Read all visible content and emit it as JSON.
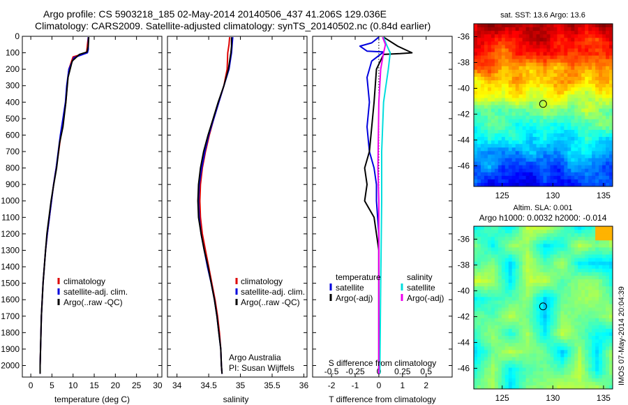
{
  "header": {
    "line1": "Argo profile: CS 5903218_185 02-May-2014 20140506_437 41.206S 129.036E",
    "line2": "Climatology: CARS2009. Satellite-adjusted climatology: synTS_20140502.nc (0.84d earlier)"
  },
  "footer_note": "IMOS 07-May-2014 20:04:39",
  "chart_data": [
    {
      "type": "line",
      "xlabel": "temperature (deg C)",
      "ylabel": "",
      "xticks": [
        "0",
        "5",
        "10",
        "15",
        "20",
        "25",
        "30"
      ],
      "yticks": [
        "0",
        "100",
        "200",
        "300",
        "400",
        "500",
        "600",
        "700",
        "800",
        "900",
        "1000",
        "1100",
        "1200",
        "1300",
        "1400",
        "1500",
        "1600",
        "1700",
        "1800",
        "1900",
        "2000"
      ],
      "xlim": [
        -2,
        31
      ],
      "ylim": [
        2070,
        0
      ],
      "legend": [
        "climatology",
        "satellite-adj. clim.",
        "Argo(..raw -QC)"
      ],
      "colors": [
        "#dd0000",
        "#0000dd",
        "#000000"
      ],
      "series": [
        {
          "name": "climatology",
          "color": "#dd0000",
          "points": [
            [
              13.6,
              5
            ],
            [
              13.4,
              50
            ],
            [
              13.2,
              100
            ],
            [
              10.0,
              125
            ],
            [
              9.0,
              200
            ],
            [
              8.6,
              300
            ],
            [
              8.3,
              400
            ],
            [
              7.7,
              500
            ],
            [
              7.1,
              600
            ],
            [
              6.6,
              700
            ],
            [
              6.0,
              800
            ],
            [
              5.4,
              900
            ],
            [
              4.9,
              1000
            ],
            [
              4.4,
              1100
            ],
            [
              3.9,
              1200
            ],
            [
              3.5,
              1300
            ],
            [
              3.2,
              1400
            ],
            [
              2.9,
              1500
            ],
            [
              2.7,
              1600
            ],
            [
              2.5,
              1700
            ],
            [
              2.4,
              1800
            ],
            [
              2.3,
              1900
            ],
            [
              2.2,
              2000
            ],
            [
              2.2,
              2050
            ]
          ]
        },
        {
          "name": "satellite-adj. clim.",
          "color": "#0000dd",
          "points": [
            [
              13.6,
              5
            ],
            [
              13.6,
              80
            ],
            [
              13.4,
              100
            ],
            [
              10.2,
              130
            ],
            [
              9.0,
              200
            ],
            [
              8.5,
              300
            ],
            [
              8.2,
              400
            ],
            [
              7.6,
              500
            ],
            [
              7.0,
              600
            ],
            [
              6.5,
              700
            ],
            [
              6.0,
              800
            ],
            [
              5.4,
              900
            ],
            [
              4.9,
              1000
            ],
            [
              4.4,
              1100
            ],
            [
              3.9,
              1200
            ],
            [
              3.5,
              1300
            ],
            [
              3.2,
              1400
            ],
            [
              2.9,
              1500
            ],
            [
              2.7,
              1600
            ],
            [
              2.5,
              1700
            ],
            [
              2.4,
              1800
            ],
            [
              2.3,
              1900
            ],
            [
              2.2,
              2000
            ],
            [
              2.2,
              2050
            ]
          ]
        },
        {
          "name": "Argo(..raw -QC)",
          "color": "#000000",
          "points": [
            [
              13.7,
              5
            ],
            [
              13.6,
              60
            ],
            [
              13.3,
              95
            ],
            [
              11.5,
              110
            ],
            [
              9.8,
              150
            ],
            [
              8.8,
              250
            ],
            [
              8.3,
              400
            ],
            [
              7.6,
              550
            ],
            [
              6.8,
              650
            ],
            [
              6.1,
              800
            ],
            [
              5.3,
              920
            ],
            [
              4.8,
              1000
            ],
            [
              4.3,
              1100
            ],
            [
              3.8,
              1200
            ],
            [
              3.5,
              1300
            ],
            [
              3.2,
              1400
            ],
            [
              2.9,
              1500
            ],
            [
              2.7,
              1600
            ],
            [
              2.5,
              1700
            ],
            [
              2.4,
              1800
            ],
            [
              2.3,
              1900
            ],
            [
              2.2,
              2000
            ],
            [
              2.2,
              2050
            ]
          ]
        }
      ]
    },
    {
      "type": "line",
      "xlabel": "salinity",
      "xticks": [
        "34",
        "34.5",
        "35",
        "35.5",
        "36"
      ],
      "xlim": [
        33.85,
        36.05
      ],
      "ylim": [
        2070,
        0
      ],
      "legend": [
        "climatology",
        "satellite-adj. clim.",
        "Argo(..raw -QC)"
      ],
      "annotation1": "Argo Australia",
      "annotation2": "PI: Susan Wijffels",
      "series": [
        {
          "name": "climatology",
          "color": "#dd0000",
          "points": [
            [
              34.83,
              5
            ],
            [
              34.82,
              50
            ],
            [
              34.8,
              100
            ],
            [
              34.79,
              200
            ],
            [
              34.74,
              300
            ],
            [
              34.66,
              400
            ],
            [
              34.58,
              500
            ],
            [
              34.51,
              600
            ],
            [
              34.45,
              700
            ],
            [
              34.4,
              800
            ],
            [
              34.37,
              900
            ],
            [
              34.36,
              1000
            ],
            [
              34.37,
              1100
            ],
            [
              34.4,
              1200
            ],
            [
              34.45,
              1300
            ],
            [
              34.5,
              1400
            ],
            [
              34.55,
              1500
            ],
            [
              34.6,
              1600
            ],
            [
              34.64,
              1700
            ],
            [
              34.67,
              1800
            ],
            [
              34.69,
              1900
            ],
            [
              34.7,
              2000
            ],
            [
              34.71,
              2050
            ]
          ]
        },
        {
          "name": "satellite-adj. clim.",
          "color": "#0000dd",
          "points": [
            [
              34.88,
              5
            ],
            [
              34.87,
              50
            ],
            [
              34.86,
              100
            ],
            [
              34.82,
              200
            ],
            [
              34.74,
              300
            ],
            [
              34.66,
              400
            ],
            [
              34.58,
              500
            ],
            [
              34.5,
              600
            ],
            [
              34.44,
              700
            ],
            [
              34.39,
              800
            ],
            [
              34.35,
              900
            ],
            [
              34.34,
              1000
            ],
            [
              34.35,
              1100
            ],
            [
              34.38,
              1200
            ],
            [
              34.43,
              1300
            ],
            [
              34.48,
              1400
            ],
            [
              34.54,
              1500
            ],
            [
              34.59,
              1600
            ],
            [
              34.63,
              1700
            ],
            [
              34.66,
              1800
            ],
            [
              34.69,
              1900
            ],
            [
              34.7,
              2000
            ],
            [
              34.71,
              2050
            ]
          ]
        },
        {
          "name": "Argo(..raw -QC)",
          "color": "#000000",
          "points": [
            [
              34.86,
              5
            ],
            [
              34.86,
              60
            ],
            [
              34.85,
              100
            ],
            [
              34.81,
              200
            ],
            [
              34.74,
              300
            ],
            [
              34.65,
              400
            ],
            [
              34.57,
              500
            ],
            [
              34.49,
              600
            ],
            [
              34.42,
              700
            ],
            [
              34.37,
              800
            ],
            [
              34.34,
              900
            ],
            [
              34.33,
              1000
            ],
            [
              34.34,
              1100
            ],
            [
              34.38,
              1200
            ],
            [
              34.43,
              1300
            ],
            [
              34.49,
              1400
            ],
            [
              34.54,
              1500
            ],
            [
              34.59,
              1600
            ],
            [
              34.63,
              1700
            ],
            [
              34.66,
              1800
            ],
            [
              34.69,
              1900
            ],
            [
              34.7,
              2000
            ],
            [
              34.71,
              2050
            ]
          ]
        }
      ]
    },
    {
      "type": "line",
      "xlabel": "T difference from climatology",
      "toplabel": "S difference from climatology",
      "xticks": [
        "-2",
        "-1",
        "0",
        "1",
        "2"
      ],
      "sticks": [
        "-0.5",
        "-0.25",
        "0",
        "0.25",
        "0.5"
      ],
      "xlim": [
        -2.8,
        3.1
      ],
      "ylim": [
        2070,
        0
      ],
      "legend_t_head": "temperature",
      "legend_s_head": "salinity",
      "legend_t": [
        "satellite",
        "Argo(-adj)"
      ],
      "legend_s": [
        "satellite",
        "Argo(-adj)"
      ],
      "series": [
        {
          "name": "T satellite",
          "color": "#0000dd",
          "points": [
            [
              0.0,
              5
            ],
            [
              -0.3,
              40
            ],
            [
              -0.8,
              60
            ],
            [
              -0.5,
              90
            ],
            [
              0.2,
              95
            ],
            [
              -0.3,
              150
            ],
            [
              -0.5,
              250
            ],
            [
              -0.4,
              400
            ],
            [
              -0.5,
              550
            ],
            [
              -0.4,
              700
            ],
            [
              -0.2,
              800
            ],
            [
              -0.1,
              900
            ],
            [
              -0.1,
              1000
            ],
            [
              0.0,
              1200
            ],
            [
              0.0,
              1500
            ],
            [
              0.0,
              2050
            ]
          ]
        },
        {
          "name": "T Argo(-adj)",
          "color": "#000000",
          "points": [
            [
              0.2,
              5
            ],
            [
              0.8,
              60
            ],
            [
              1.4,
              100
            ],
            [
              0.9,
              105
            ],
            [
              0.2,
              110
            ],
            [
              -0.1,
              200
            ],
            [
              -0.2,
              400
            ],
            [
              -0.4,
              700
            ],
            [
              -0.6,
              800
            ],
            [
              -0.5,
              900
            ],
            [
              -0.6,
              1000
            ],
            [
              -0.2,
              1100
            ],
            [
              0.0,
              1300
            ],
            [
              0.0,
              2050
            ]
          ]
        },
        {
          "name": "S satellite",
          "color": "#00dddd",
          "points": [
            [
              0.05,
              5
            ],
            [
              0.08,
              50
            ],
            [
              0.12,
              100
            ],
            [
              0.1,
              200
            ],
            [
              0.05,
              400
            ],
            [
              0.03,
              700
            ],
            [
              0.03,
              1000
            ],
            [
              0.02,
              1500
            ],
            [
              0.01,
              2050
            ]
          ]
        },
        {
          "name": "S Argo(-adj)",
          "color": "#ee00ee",
          "points": [
            [
              0.04,
              5
            ],
            [
              0.07,
              50
            ],
            [
              0.05,
              100
            ],
            [
              0.02,
              200
            ],
            [
              0.0,
              400
            ],
            [
              -0.01,
              800
            ],
            [
              0.0,
              1000
            ],
            [
              0.0,
              2050
            ]
          ]
        }
      ]
    }
  ],
  "maps": [
    {
      "title": "sat. SST: 13.6 Argo: 13.6",
      "xticks": [
        "125",
        "130",
        "135"
      ],
      "yticks": [
        "-36",
        "-38",
        "-40",
        "-42",
        "-44",
        "-46"
      ],
      "marker_lon": 129.036,
      "marker_lat": -41.206
    },
    {
      "title1": "Altim. SLA: 0.001",
      "title2": "Argo h1000: 0.0032 h2000: -0.014",
      "xticks": [
        "125",
        "130",
        "135"
      ],
      "yticks": [
        "-36",
        "-38",
        "-40",
        "-42",
        "-44",
        "-46"
      ],
      "marker_lon": 129.036,
      "marker_lat": -41.206
    }
  ]
}
